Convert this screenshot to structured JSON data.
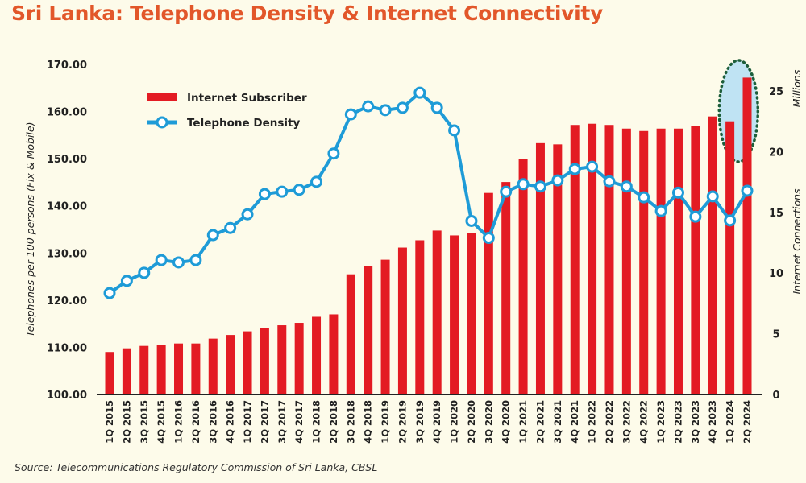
{
  "title": "Sri Lanka: Telephone Density & Internet Connectivity",
  "source": "Source: Telecommunications Regulatory Commission of Sri Lanka, CBSL",
  "colors": {
    "title": "#e2572a",
    "bars": "#e31b23",
    "line": "#1e9bd7",
    "highlight_fill": "#bfe3f3",
    "highlight_border": "#1d5e3a",
    "background": "#fdfbea"
  },
  "chart_data": {
    "type": "bar+line",
    "title": "Sri Lanka: Telephone Density & Internet Connectivity",
    "categories": [
      "1Q 2015",
      "2Q 2015",
      "3Q 2015",
      "4Q 2015",
      "1Q 2016",
      "2Q 2016",
      "3Q 2016",
      "4Q 2016",
      "1Q 2017",
      "2Q 2017",
      "3Q 2017",
      "4Q 2017",
      "1Q 2018",
      "2Q 2018",
      "3Q 2018",
      "4Q 2018",
      "1Q 2019",
      "2Q 2019",
      "3Q 2019",
      "4Q 2019",
      "1Q 2020",
      "2Q 2020",
      "3Q 2020",
      "4Q 2020",
      "1Q 2021",
      "2Q 2021",
      "3Q 2021",
      "4Q 2021",
      "1Q 2022",
      "2Q 2022",
      "3Q 2022",
      "4Q 2022",
      "1Q 2023",
      "2Q 2023",
      "3Q 2023",
      "4Q 2023",
      "1Q 2024",
      "2Q 2024"
    ],
    "series": [
      {
        "name": "Internet Subscriber",
        "type": "bar",
        "axis": "right",
        "values": [
          3.5,
          3.8,
          4.0,
          4.1,
          4.2,
          4.2,
          4.6,
          4.9,
          5.2,
          5.5,
          5.7,
          5.9,
          6.4,
          6.6,
          9.9,
          10.6,
          11.1,
          12.1,
          12.7,
          13.5,
          13.1,
          13.3,
          16.6,
          17.5,
          19.4,
          20.7,
          20.6,
          22.2,
          22.3,
          22.2,
          21.9,
          21.7,
          21.9,
          21.9,
          22.1,
          22.9,
          22.5,
          26.1
        ]
      },
      {
        "name": "Telephone Density",
        "type": "line",
        "axis": "left",
        "values": [
          121.5,
          124.1,
          125.8,
          128.5,
          128.0,
          128.5,
          133.8,
          135.3,
          138.2,
          142.5,
          143.0,
          143.4,
          145.1,
          151.1,
          159.4,
          161.1,
          160.3,
          160.8,
          164.0,
          160.8,
          156.0,
          136.8,
          133.2,
          143.0,
          144.6,
          144.1,
          145.4,
          147.8,
          148.3,
          145.2,
          144.1,
          141.8,
          138.9,
          142.8,
          137.7,
          142.0,
          136.9,
          143.2
        ]
      }
    ],
    "ylabel": "Telephones per 100 persons (Fix & Mobile)",
    "ylim": [
      100,
      170
    ],
    "yticks": [
      "100.00",
      "110.00",
      "120.00",
      "130.00",
      "140.00",
      "150.00",
      "160.00",
      "170.00"
    ],
    "y2label": "Internet Connections",
    "y2unit": "Millions",
    "y2lim": [
      0,
      25
    ],
    "y2ticks": [
      "0",
      "5",
      "10",
      "15",
      "20",
      "25"
    ],
    "legend": [
      "Internet Subscriber",
      "Telephone Density"
    ],
    "legend_position": "top-left",
    "grid": false,
    "annotation": "dotted ellipse highlighting 1Q 2024 – 2Q 2024 internet subscriber bars"
  }
}
